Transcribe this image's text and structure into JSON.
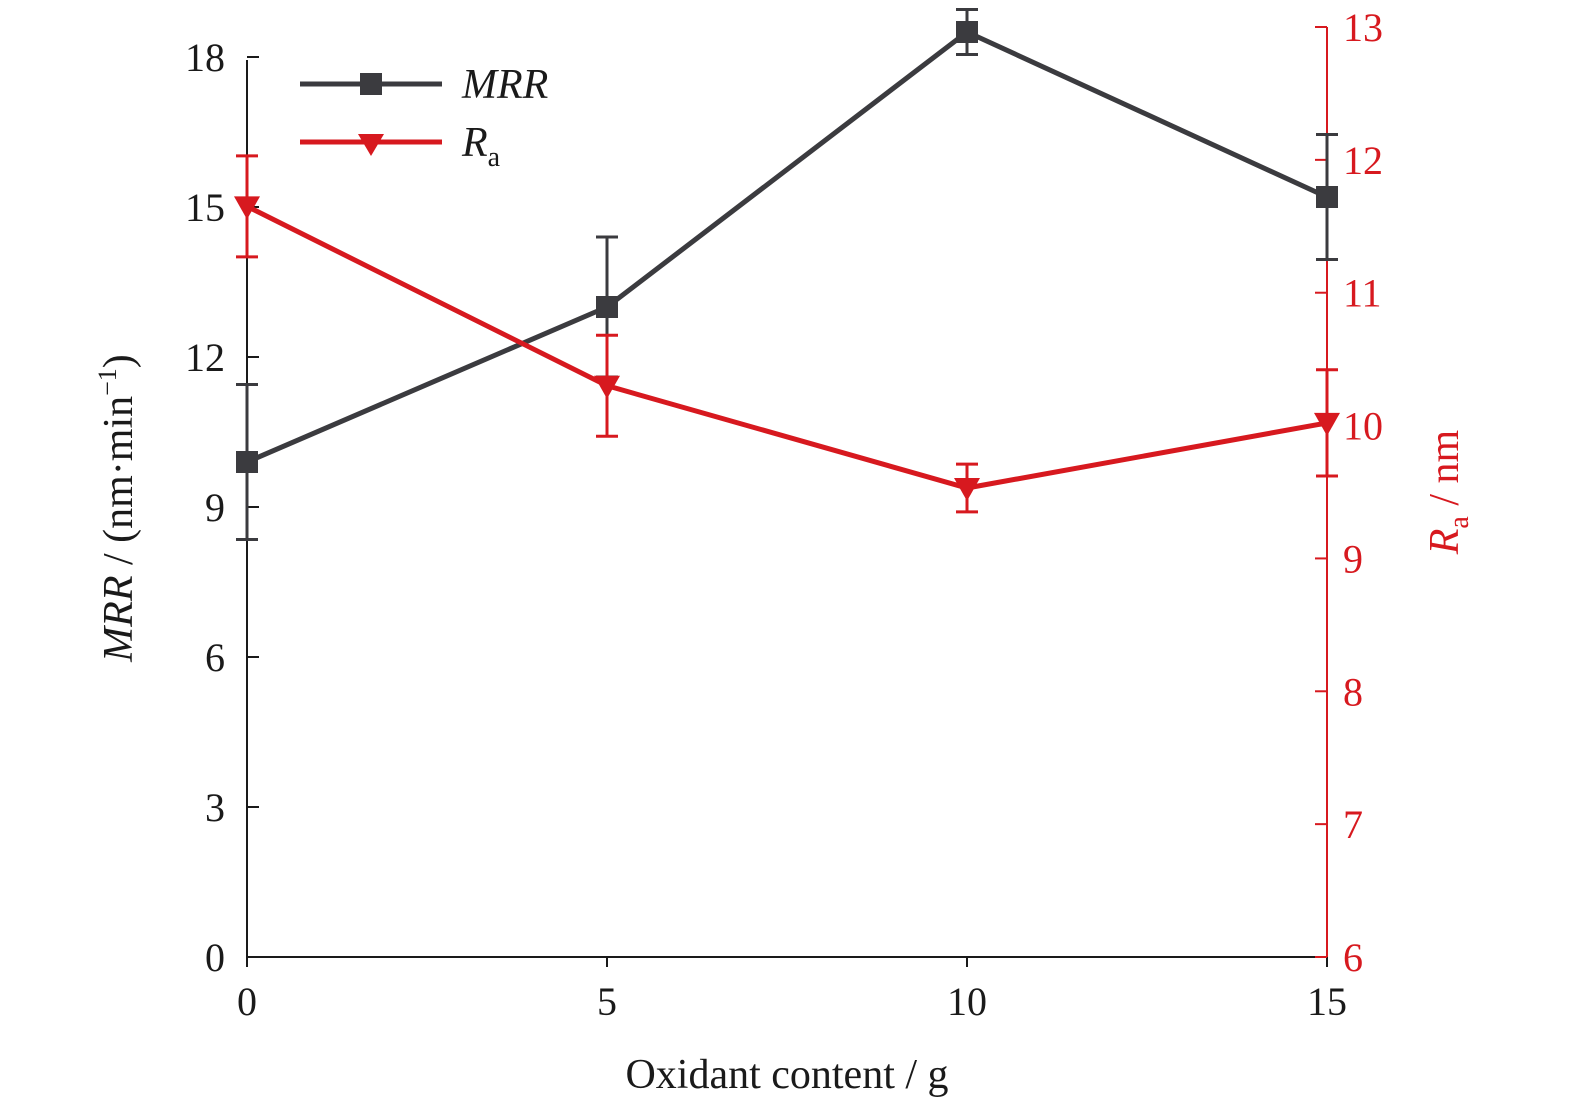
{
  "chart_data": {
    "type": "line",
    "x_axis": {
      "label": "Oxidant content / g",
      "ticks": [
        0,
        5,
        10,
        15
      ],
      "range": [
        0,
        15
      ]
    },
    "y_left": {
      "label_italic": "MRR",
      "label_rest": " / (nm·min",
      "label_sup": "−1",
      "label_close": ")",
      "ticks": [
        0,
        3,
        6,
        9,
        12,
        15,
        18
      ],
      "range": [
        0,
        18.6
      ],
      "color": "#000000"
    },
    "y_right": {
      "label_italic": "R",
      "label_sub": "a",
      "label_rest": " / nm",
      "ticks": [
        6,
        7,
        8,
        9,
        10,
        11,
        12,
        13
      ],
      "range": [
        6,
        13
      ],
      "color": "#d7191f"
    },
    "series": [
      {
        "name": "MRR",
        "axis": "left",
        "color": "#3b3b3f",
        "marker": "square",
        "x": [
          0,
          5,
          10,
          15
        ],
        "y": [
          9.9,
          13.0,
          18.5,
          15.2
        ],
        "err": [
          1.55,
          1.4,
          0.45,
          1.25
        ]
      },
      {
        "name_main": "R",
        "name_sub": "a",
        "axis": "right",
        "color": "#d7191f",
        "marker": "triangle-down",
        "x": [
          0,
          5,
          10,
          15
        ],
        "y": [
          11.65,
          10.3,
          9.53,
          10.02
        ],
        "err": [
          0.38,
          0.38,
          0.18,
          0.4
        ]
      }
    ],
    "legend": {
      "position": "top-left",
      "items": [
        {
          "label_italic": "MRR",
          "label_sub": ""
        },
        {
          "label_italic": "R",
          "label_sub": "a"
        }
      ]
    },
    "grid": false
  }
}
